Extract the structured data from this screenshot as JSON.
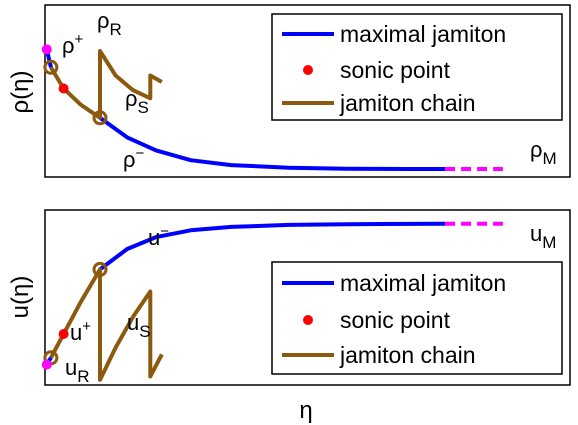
{
  "chart_data": [
    {
      "type": "line",
      "ylabel": "ρ(η)",
      "legend_position": "top-right",
      "legend": [
        {
          "label": "maximal jamiton",
          "style": "line",
          "color": "#0000ff"
        },
        {
          "label": "sonic point",
          "style": "dot",
          "color": "#ff0000"
        },
        {
          "label": "jamiton chain",
          "style": "line",
          "color": "#8b5a0f"
        }
      ],
      "point_labels": {
        "rho_plus": "ρ",
        "rho_plus_sup": "+",
        "rho_R": "ρ",
        "rho_R_sub": "R",
        "rho_S": "ρ",
        "rho_S_sub": "S",
        "rho_minus": "ρ",
        "rho_minus_sup": "−",
        "rho_M": "ρ",
        "rho_M_sub": "M"
      },
      "series": [
        {
          "name": "maximal jamiton",
          "color": "#0000ff",
          "points": [
            [
              0.173,
              0.84
            ],
            [
              0.22,
              0.78
            ],
            [
              0.27,
              0.74
            ],
            [
              0.33,
              0.71
            ],
            [
              0.4,
              0.695
            ],
            [
              0.5,
              0.687
            ],
            [
              0.6,
              0.684
            ],
            [
              0.7,
              0.683
            ],
            [
              0.77,
              0.683
            ]
          ]
        },
        {
          "name": "maximal jamiton (dashed)",
          "color": "#ff00ff",
          "points": [
            [
              0.77,
              0.683
            ],
            [
              0.87,
              0.683
            ]
          ]
        },
        {
          "name": "jamiton chain",
          "color": "#8b5a0f",
          "points": [
            [
              0.088,
              0.995
            ],
            [
              0.11,
              0.93
            ],
            [
              0.14,
              0.88
            ],
            [
              0.173,
              0.84
            ],
            [
              0.173,
              1.045
            ],
            [
              0.2,
              0.97
            ],
            [
              0.23,
              0.925
            ],
            [
              0.26,
              0.9
            ],
            [
              0.26,
              0.97
            ],
            [
              0.28,
              0.95
            ]
          ]
        },
        {
          "name": "maximal jamiton (initial)",
          "color": "#0000ff",
          "points": [
            [
              0.081,
              1.05
            ],
            [
              0.088,
              0.995
            ]
          ]
        }
      ],
      "markers": [
        {
          "name": "rho-R",
          "x": 0.081,
          "y": 1.05,
          "kind": "magenta-dot"
        },
        {
          "name": "rho-plus",
          "x": 0.088,
          "y": 0.995,
          "kind": "circle"
        },
        {
          "name": "rho-S",
          "x": 0.11,
          "y": 0.93,
          "kind": "red-dot"
        },
        {
          "name": "rho-minus",
          "x": 0.173,
          "y": 0.84,
          "kind": "circle"
        }
      ]
    },
    {
      "type": "line",
      "ylabel": "u(η)",
      "xlabel": "η",
      "legend_position": "bottom-right",
      "legend": [
        {
          "label": "maximal jamiton",
          "style": "line",
          "color": "#0000ff"
        },
        {
          "label": "sonic point",
          "style": "dot",
          "color": "#ff0000"
        },
        {
          "label": "jamiton chain",
          "style": "line",
          "color": "#8b5a0f"
        }
      ],
      "point_labels": {
        "u_minus": "u",
        "u_minus_sup": "−",
        "u_plus": "u",
        "u_plus_sup": "+",
        "u_S": "u",
        "u_S_sub": "S",
        "u_R": "u",
        "u_R_sub": "R",
        "u_M": "u",
        "u_M_sub": "M"
      },
      "series": [
        {
          "name": "maximal jamiton",
          "color": "#0000ff",
          "points": [
            [
              0.173,
              0.68
            ],
            [
              0.22,
              0.8
            ],
            [
              0.27,
              0.87
            ],
            [
              0.33,
              0.91
            ],
            [
              0.4,
              0.93
            ],
            [
              0.5,
              0.942
            ],
            [
              0.6,
              0.946
            ],
            [
              0.77,
              0.948
            ]
          ]
        },
        {
          "name": "maximal jamiton (dashed)",
          "color": "#ff00ff",
          "points": [
            [
              0.77,
              0.948
            ],
            [
              0.87,
              0.948
            ]
          ]
        },
        {
          "name": "jamiton chain",
          "color": "#8b5a0f",
          "points": [
            [
              0.088,
              0.16
            ],
            [
              0.11,
              0.3
            ],
            [
              0.14,
              0.49
            ],
            [
              0.173,
              0.68
            ],
            [
              0.173,
              0.03
            ],
            [
              0.2,
              0.22
            ],
            [
              0.23,
              0.4
            ],
            [
              0.26,
              0.55
            ],
            [
              0.26,
              0.05
            ],
            [
              0.28,
              0.18
            ]
          ]
        },
        {
          "name": "maximal jamiton (initial)",
          "color": "#0000ff",
          "points": [
            [
              0.081,
              0.12
            ],
            [
              0.088,
              0.16
            ]
          ]
        }
      ],
      "markers": [
        {
          "name": "u-minus",
          "x": 0.173,
          "y": 0.68,
          "kind": "circle"
        },
        {
          "name": "u-S",
          "x": 0.11,
          "y": 0.3,
          "kind": "red-dot"
        },
        {
          "name": "u-plus",
          "x": 0.088,
          "y": 0.16,
          "kind": "circle"
        },
        {
          "name": "u-R",
          "x": 0.081,
          "y": 0.12,
          "kind": "magenta-dot"
        }
      ]
    }
  ]
}
